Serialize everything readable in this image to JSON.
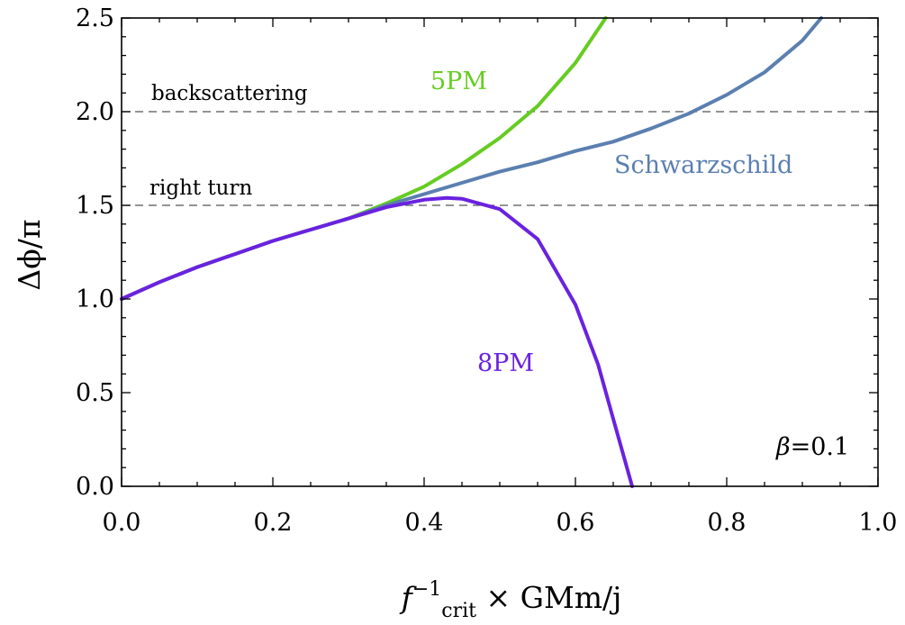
{
  "chart_data": {
    "type": "line",
    "xlabel": {
      "base": "f",
      "sup": "−1",
      "sub": "crit",
      "rest": " × GMm/j"
    },
    "ylabel": "Δϕ/π",
    "xlim": [
      0,
      1
    ],
    "ylim": [
      0,
      2.5
    ],
    "x_ticks": [
      "0.0",
      "0.2",
      "0.4",
      "0.6",
      "0.8",
      "1.0"
    ],
    "y_ticks": [
      "0.0",
      "0.5",
      "1.0",
      "1.5",
      "2.0",
      "2.5"
    ],
    "grid": false,
    "reference_lines": [
      {
        "y": 2.0,
        "label": "backscattering",
        "style": "dashed"
      },
      {
        "y": 1.5,
        "label": "right turn",
        "style": "dashed"
      }
    ],
    "parameter_note": {
      "symbol": "β",
      "text": "=0.1"
    },
    "series": [
      {
        "name": "5PM",
        "color": "#66cc22",
        "x": [
          0,
          0.05,
          0.1,
          0.15,
          0.2,
          0.25,
          0.3,
          0.35,
          0.4,
          0.45,
          0.5,
          0.55,
          0.6,
          0.64
        ],
        "y": [
          1.0,
          1.09,
          1.17,
          1.24,
          1.31,
          1.37,
          1.43,
          1.51,
          1.6,
          1.72,
          1.86,
          2.03,
          2.26,
          2.5
        ]
      },
      {
        "name": "Schwarzschild",
        "color": "#5b7fb0",
        "x": [
          0,
          0.05,
          0.1,
          0.15,
          0.2,
          0.25,
          0.3,
          0.35,
          0.4,
          0.45,
          0.5,
          0.55,
          0.6,
          0.65,
          0.7,
          0.75,
          0.8,
          0.85,
          0.9,
          0.925
        ],
        "y": [
          1.0,
          1.09,
          1.17,
          1.24,
          1.31,
          1.37,
          1.43,
          1.5,
          1.56,
          1.62,
          1.68,
          1.73,
          1.79,
          1.84,
          1.91,
          1.99,
          2.09,
          2.21,
          2.38,
          2.5
        ]
      },
      {
        "name": "8PM",
        "color": "#6a22e0",
        "x": [
          0,
          0.05,
          0.1,
          0.15,
          0.2,
          0.25,
          0.3,
          0.35,
          0.4,
          0.43,
          0.45,
          0.5,
          0.55,
          0.6,
          0.63,
          0.65,
          0.675
        ],
        "y": [
          1.0,
          1.09,
          1.17,
          1.24,
          1.31,
          1.37,
          1.43,
          1.49,
          1.53,
          1.54,
          1.535,
          1.48,
          1.32,
          0.97,
          0.65,
          0.36,
          0.0
        ]
      }
    ]
  }
}
